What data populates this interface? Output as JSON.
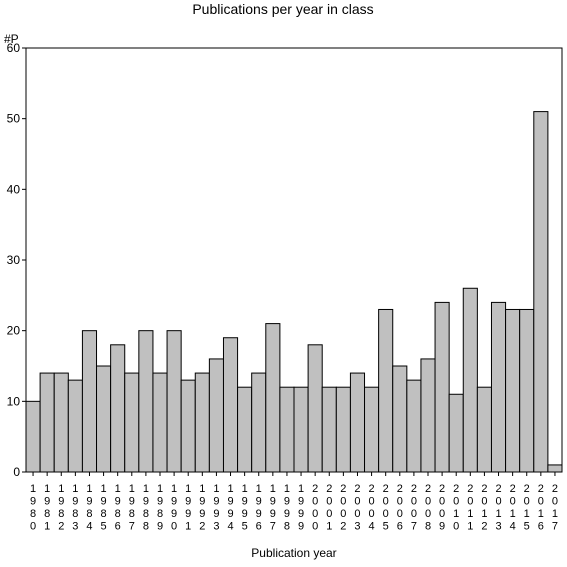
{
  "chart_data": {
    "type": "bar",
    "title": "Publications per year in class",
    "ylabel": "#P",
    "xlabel": "Publication year",
    "ylim": [
      0,
      60
    ],
    "yticks": [
      0,
      10,
      20,
      30,
      40,
      50,
      60
    ],
    "grid": false,
    "legend": "none",
    "categories": [
      "1980",
      "1981",
      "1982",
      "1983",
      "1984",
      "1985",
      "1986",
      "1987",
      "1988",
      "1989",
      "1990",
      "1991",
      "1992",
      "1993",
      "1994",
      "1995",
      "1996",
      "1997",
      "1998",
      "1999",
      "2000",
      "2001",
      "2002",
      "2003",
      "2004",
      "2005",
      "2006",
      "2007",
      "2008",
      "2009",
      "2010",
      "2011",
      "2012",
      "2013",
      "2014",
      "2015",
      "2016",
      "2017"
    ],
    "values": [
      10,
      14,
      14,
      13,
      20,
      15,
      18,
      14,
      20,
      14,
      20,
      13,
      14,
      16,
      19,
      12,
      14,
      21,
      12,
      12,
      18,
      12,
      12,
      14,
      12,
      23,
      15,
      13,
      16,
      24,
      11,
      26,
      12,
      24,
      23,
      23,
      51,
      1
    ],
    "bar_color": "#c0c0c0",
    "edge_color": "#000000"
  }
}
